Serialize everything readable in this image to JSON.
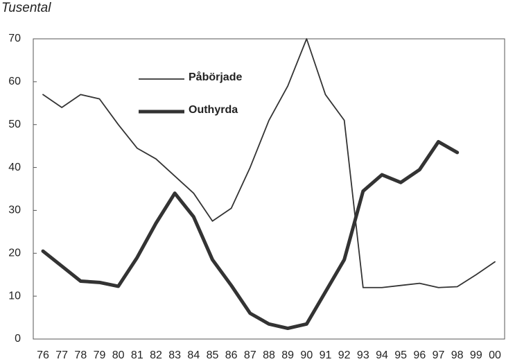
{
  "chart_data": {
    "type": "line",
    "title": "Tusental",
    "categories": [
      "76",
      "77",
      "78",
      "79",
      "80",
      "81",
      "82",
      "83",
      "84",
      "85",
      "86",
      "87",
      "88",
      "89",
      "90",
      "91",
      "92",
      "93",
      "94",
      "95",
      "96",
      "97",
      "98",
      "99",
      "00"
    ],
    "series": [
      {
        "name": "Påbörjade",
        "color": "#333333",
        "width": 1.8,
        "values": [
          57,
          54,
          57,
          56,
          50,
          44.5,
          42,
          38,
          34,
          27.5,
          30.5,
          40,
          51,
          59,
          70,
          57,
          51,
          12,
          12,
          12.5,
          13,
          12,
          12.2,
          15,
          18
        ]
      },
      {
        "name": "Outhyrda",
        "color": "#333333",
        "width": 5,
        "values": [
          20.5,
          17,
          13.5,
          13.2,
          12.3,
          19,
          27,
          34,
          28.5,
          18.5,
          12.5,
          6,
          3.5,
          2.5,
          3.5,
          11,
          18.5,
          34.5,
          38.3,
          36.5,
          39.5,
          46,
          43.5,
          null,
          null
        ]
      }
    ],
    "ylim": [
      0,
      70
    ],
    "yticks": [
      0,
      10,
      20,
      30,
      40,
      50,
      60,
      70
    ]
  }
}
